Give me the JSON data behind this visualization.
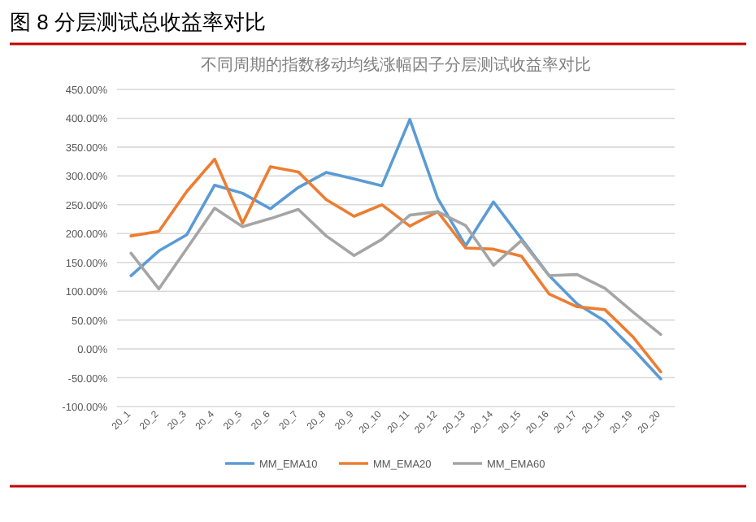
{
  "chart_data": {
    "type": "line",
    "title": "图 8 分层测试总收益率对比",
    "subtitle": "不同周期的指数移动均线涨幅因子分层测试收益率对比",
    "categories": [
      "20_1",
      "20_2",
      "20_3",
      "20_4",
      "20_5",
      "20_6",
      "20_7",
      "20_8",
      "20_9",
      "20_10",
      "20_11",
      "20_12",
      "20_13",
      "20_14",
      "20_15",
      "20_16",
      "20_17",
      "20_18",
      "20_19",
      "20_20"
    ],
    "series": [
      {
        "name": "MM_EMA10",
        "color": "#5b9bd5",
        "values": [
          127,
          170,
          198,
          284,
          270,
          243,
          280,
          306,
          295,
          283,
          398,
          261,
          179,
          255,
          191,
          127,
          78,
          48,
          0,
          -52
        ]
      },
      {
        "name": "MM_EMA20",
        "color": "#ed7d31",
        "values": [
          196,
          204,
          273,
          329,
          218,
          316,
          307,
          259,
          230,
          250,
          213,
          238,
          175,
          173,
          161,
          95,
          73,
          68,
          21,
          -40
        ]
      },
      {
        "name": "MM_EMA60",
        "color": "#a5a5a5",
        "values": [
          166,
          104,
          174,
          244,
          212,
          226,
          242,
          196,
          162,
          190,
          232,
          238,
          214,
          145,
          188,
          127,
          129,
          105,
          64,
          25
        ]
      }
    ],
    "ylim": [
      -100,
      450
    ],
    "yticks": [
      {
        "value": -100,
        "label": "-100.00%"
      },
      {
        "value": -50,
        "label": "-50.00%"
      },
      {
        "value": 0,
        "label": "0.00%"
      },
      {
        "value": 50,
        "label": "50.00%"
      },
      {
        "value": 100,
        "label": "100.00%"
      },
      {
        "value": 150,
        "label": "150.00%"
      },
      {
        "value": 200,
        "label": "200.00%"
      },
      {
        "value": 250,
        "label": "250.00%"
      },
      {
        "value": 300,
        "label": "300.00%"
      },
      {
        "value": 350,
        "label": "350.00%"
      },
      {
        "value": 400,
        "label": "400.00%"
      },
      {
        "value": 450,
        "label": "450.00%"
      }
    ],
    "grid": "y",
    "legend": "bottom",
    "marker": "none",
    "line_style": "solid"
  }
}
